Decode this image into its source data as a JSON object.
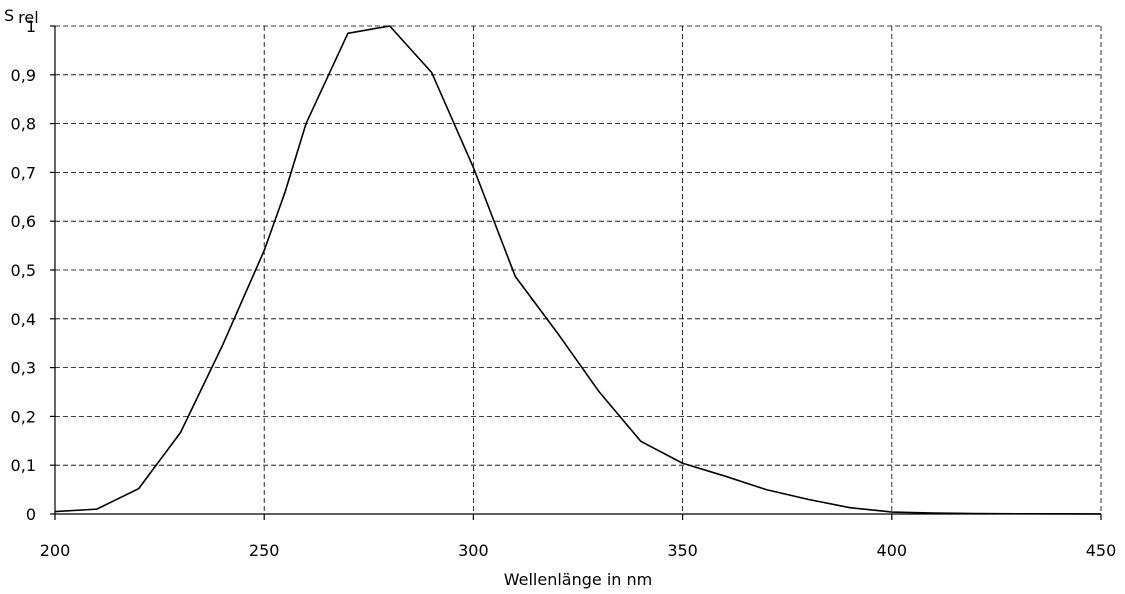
{
  "chart_data": {
    "type": "line",
    "title": "",
    "xlabel": "Wellenlänge in nm",
    "ylabel": "S",
    "ylabel_subscript": "rel",
    "xlim": [
      200,
      450
    ],
    "ylim": [
      0,
      1
    ],
    "grid": true,
    "x_ticks": [
      200,
      250,
      300,
      350,
      400,
      450
    ],
    "x_tick_labels": [
      "200",
      "250",
      "300",
      "350",
      "400",
      "450"
    ],
    "y_ticks": [
      0,
      0.1,
      0.2,
      0.3,
      0.4,
      0.5,
      0.6,
      0.7,
      0.8,
      0.9,
      1
    ],
    "y_tick_labels": [
      "0",
      "0,1",
      "0,2",
      "0,3",
      "0,4",
      "0,5",
      "0,6",
      "0,7",
      "0,8",
      "0,9",
      "1"
    ],
    "series": [
      {
        "x": [
          200,
          210,
          220,
          230,
          240,
          250,
          255,
          260,
          270,
          280,
          290,
          300,
          310,
          320,
          330,
          340,
          350,
          360,
          370,
          380,
          390,
          400,
          410,
          420,
          430,
          440,
          450
        ],
        "y": [
          0.005,
          0.01,
          0.052,
          0.167,
          0.345,
          0.54,
          0.66,
          0.8,
          0.985,
          1.0,
          0.905,
          0.71,
          0.487,
          0.372,
          0.251,
          0.149,
          0.104,
          0.078,
          0.05,
          0.03,
          0.013,
          0.004,
          0.002,
          0.001,
          0.0005,
          0.0003,
          0.0002
        ]
      }
    ],
    "colors": {
      "line": "#000000",
      "grid": "#000000",
      "background": "#ffffff"
    }
  }
}
